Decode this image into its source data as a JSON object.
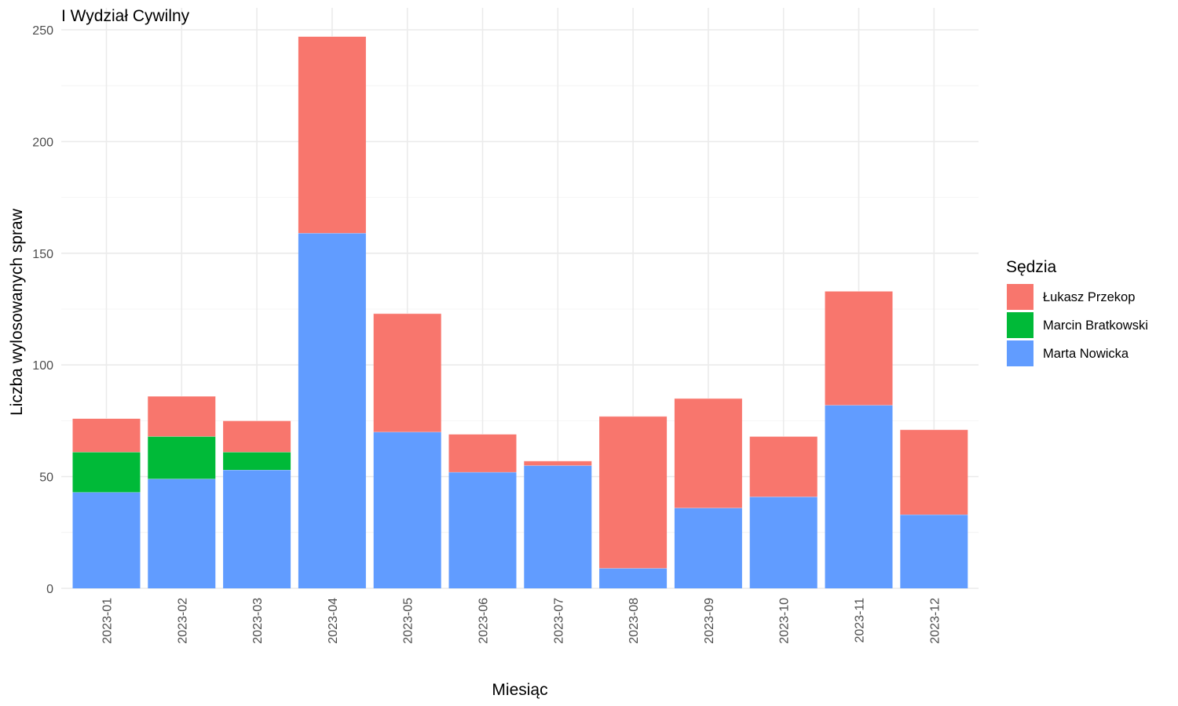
{
  "chart_data": {
    "type": "bar",
    "stacked": true,
    "title": "I Wydział Cywilny",
    "xlabel": "Miesiąc",
    "ylabel": "Liczba wylosowanych spraw",
    "ylim": [
      0,
      250
    ],
    "yticks": [
      "0",
      "50",
      "100",
      "150",
      "200",
      "250"
    ],
    "grid": true,
    "legend": {
      "title": "Sędzia",
      "position": "right"
    },
    "categories": [
      "2023-01",
      "2023-02",
      "2023-03",
      "2023-04",
      "2023-05",
      "2023-06",
      "2023-07",
      "2023-08",
      "2023-09",
      "2023-10",
      "2023-11",
      "2023-12"
    ],
    "series": [
      {
        "name": "Łukasz Przekop",
        "color": "#F8766D",
        "values": [
          15,
          18,
          14,
          88,
          53,
          17,
          2,
          68,
          49,
          27,
          51,
          38
        ]
      },
      {
        "name": "Marcin Bratkowski",
        "color": "#00BA38",
        "values": [
          18,
          19,
          8,
          0,
          0,
          0,
          0,
          0,
          0,
          0,
          0,
          0
        ]
      },
      {
        "name": "Marta Nowicka",
        "color": "#619CFF",
        "values": [
          43,
          49,
          53,
          159,
          70,
          52,
          55,
          9,
          36,
          41,
          82,
          33
        ]
      }
    ]
  }
}
